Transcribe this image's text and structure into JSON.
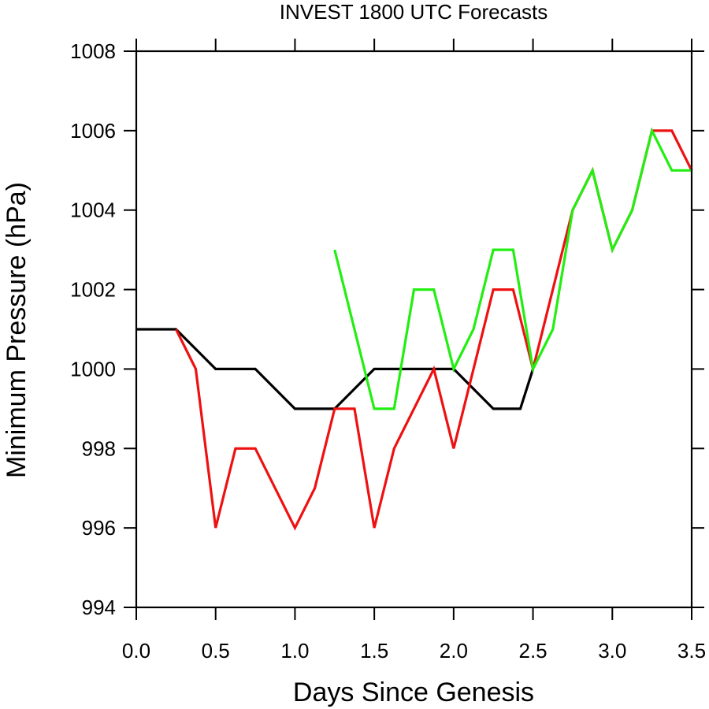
{
  "chart_data": {
    "type": "line",
    "title": "INVEST 1800 UTC Forecasts",
    "xlabel": "Days Since Genesis",
    "ylabel": "Minimum Pressure (hPa)",
    "xlim": [
      0,
      3.5
    ],
    "ylim": [
      994,
      1008
    ],
    "x_ticks": [
      "0.0",
      "0.5",
      "1.0",
      "1.5",
      "2.0",
      "2.5",
      "3.0",
      "3.5"
    ],
    "y_ticks": [
      "994",
      "996",
      "998",
      "1000",
      "1002",
      "1004",
      "1006",
      "1008"
    ],
    "grid": false,
    "series": [
      {
        "color": "#000000",
        "points": [
          [
            0.0,
            1001
          ],
          [
            0.25,
            1001
          ],
          [
            0.5,
            1000
          ],
          [
            0.75,
            1000
          ],
          [
            1.0,
            999
          ],
          [
            1.25,
            999
          ],
          [
            1.5,
            1000
          ],
          [
            1.75,
            1000
          ],
          [
            2.0,
            1000
          ],
          [
            2.25,
            999
          ],
          [
            2.42,
            999
          ],
          [
            2.5,
            1000
          ]
        ]
      },
      {
        "color": "#ee1111",
        "points": [
          [
            0.25,
            1001
          ],
          [
            0.375,
            1000
          ],
          [
            0.5,
            996
          ],
          [
            0.625,
            998
          ],
          [
            0.75,
            998
          ],
          [
            1.0,
            996
          ],
          [
            1.125,
            997
          ],
          [
            1.25,
            999
          ],
          [
            1.375,
            999
          ],
          [
            1.5,
            996
          ],
          [
            1.625,
            998
          ],
          [
            1.875,
            1000
          ],
          [
            2.0,
            998
          ],
          [
            2.25,
            1002
          ],
          [
            2.375,
            1002
          ],
          [
            2.5,
            1000
          ],
          [
            2.75,
            1004
          ],
          [
            2.875,
            1005
          ],
          [
            3.0,
            1003
          ],
          [
            3.125,
            1004
          ],
          [
            3.25,
            1006
          ],
          [
            3.375,
            1006
          ],
          [
            3.5,
            1005
          ]
        ]
      },
      {
        "color": "#22ee11",
        "points": [
          [
            1.25,
            1003
          ],
          [
            1.5,
            999
          ],
          [
            1.625,
            999
          ],
          [
            1.75,
            1002
          ],
          [
            1.875,
            1002
          ],
          [
            2.0,
            1000
          ],
          [
            2.125,
            1001
          ],
          [
            2.25,
            1003
          ],
          [
            2.375,
            1003
          ],
          [
            2.5,
            1000
          ],
          [
            2.625,
            1001
          ],
          [
            2.75,
            1004
          ],
          [
            2.875,
            1005
          ],
          [
            3.0,
            1003
          ],
          [
            3.125,
            1004
          ],
          [
            3.25,
            1006
          ],
          [
            3.375,
            1005
          ],
          [
            3.5,
            1005
          ]
        ]
      }
    ]
  }
}
